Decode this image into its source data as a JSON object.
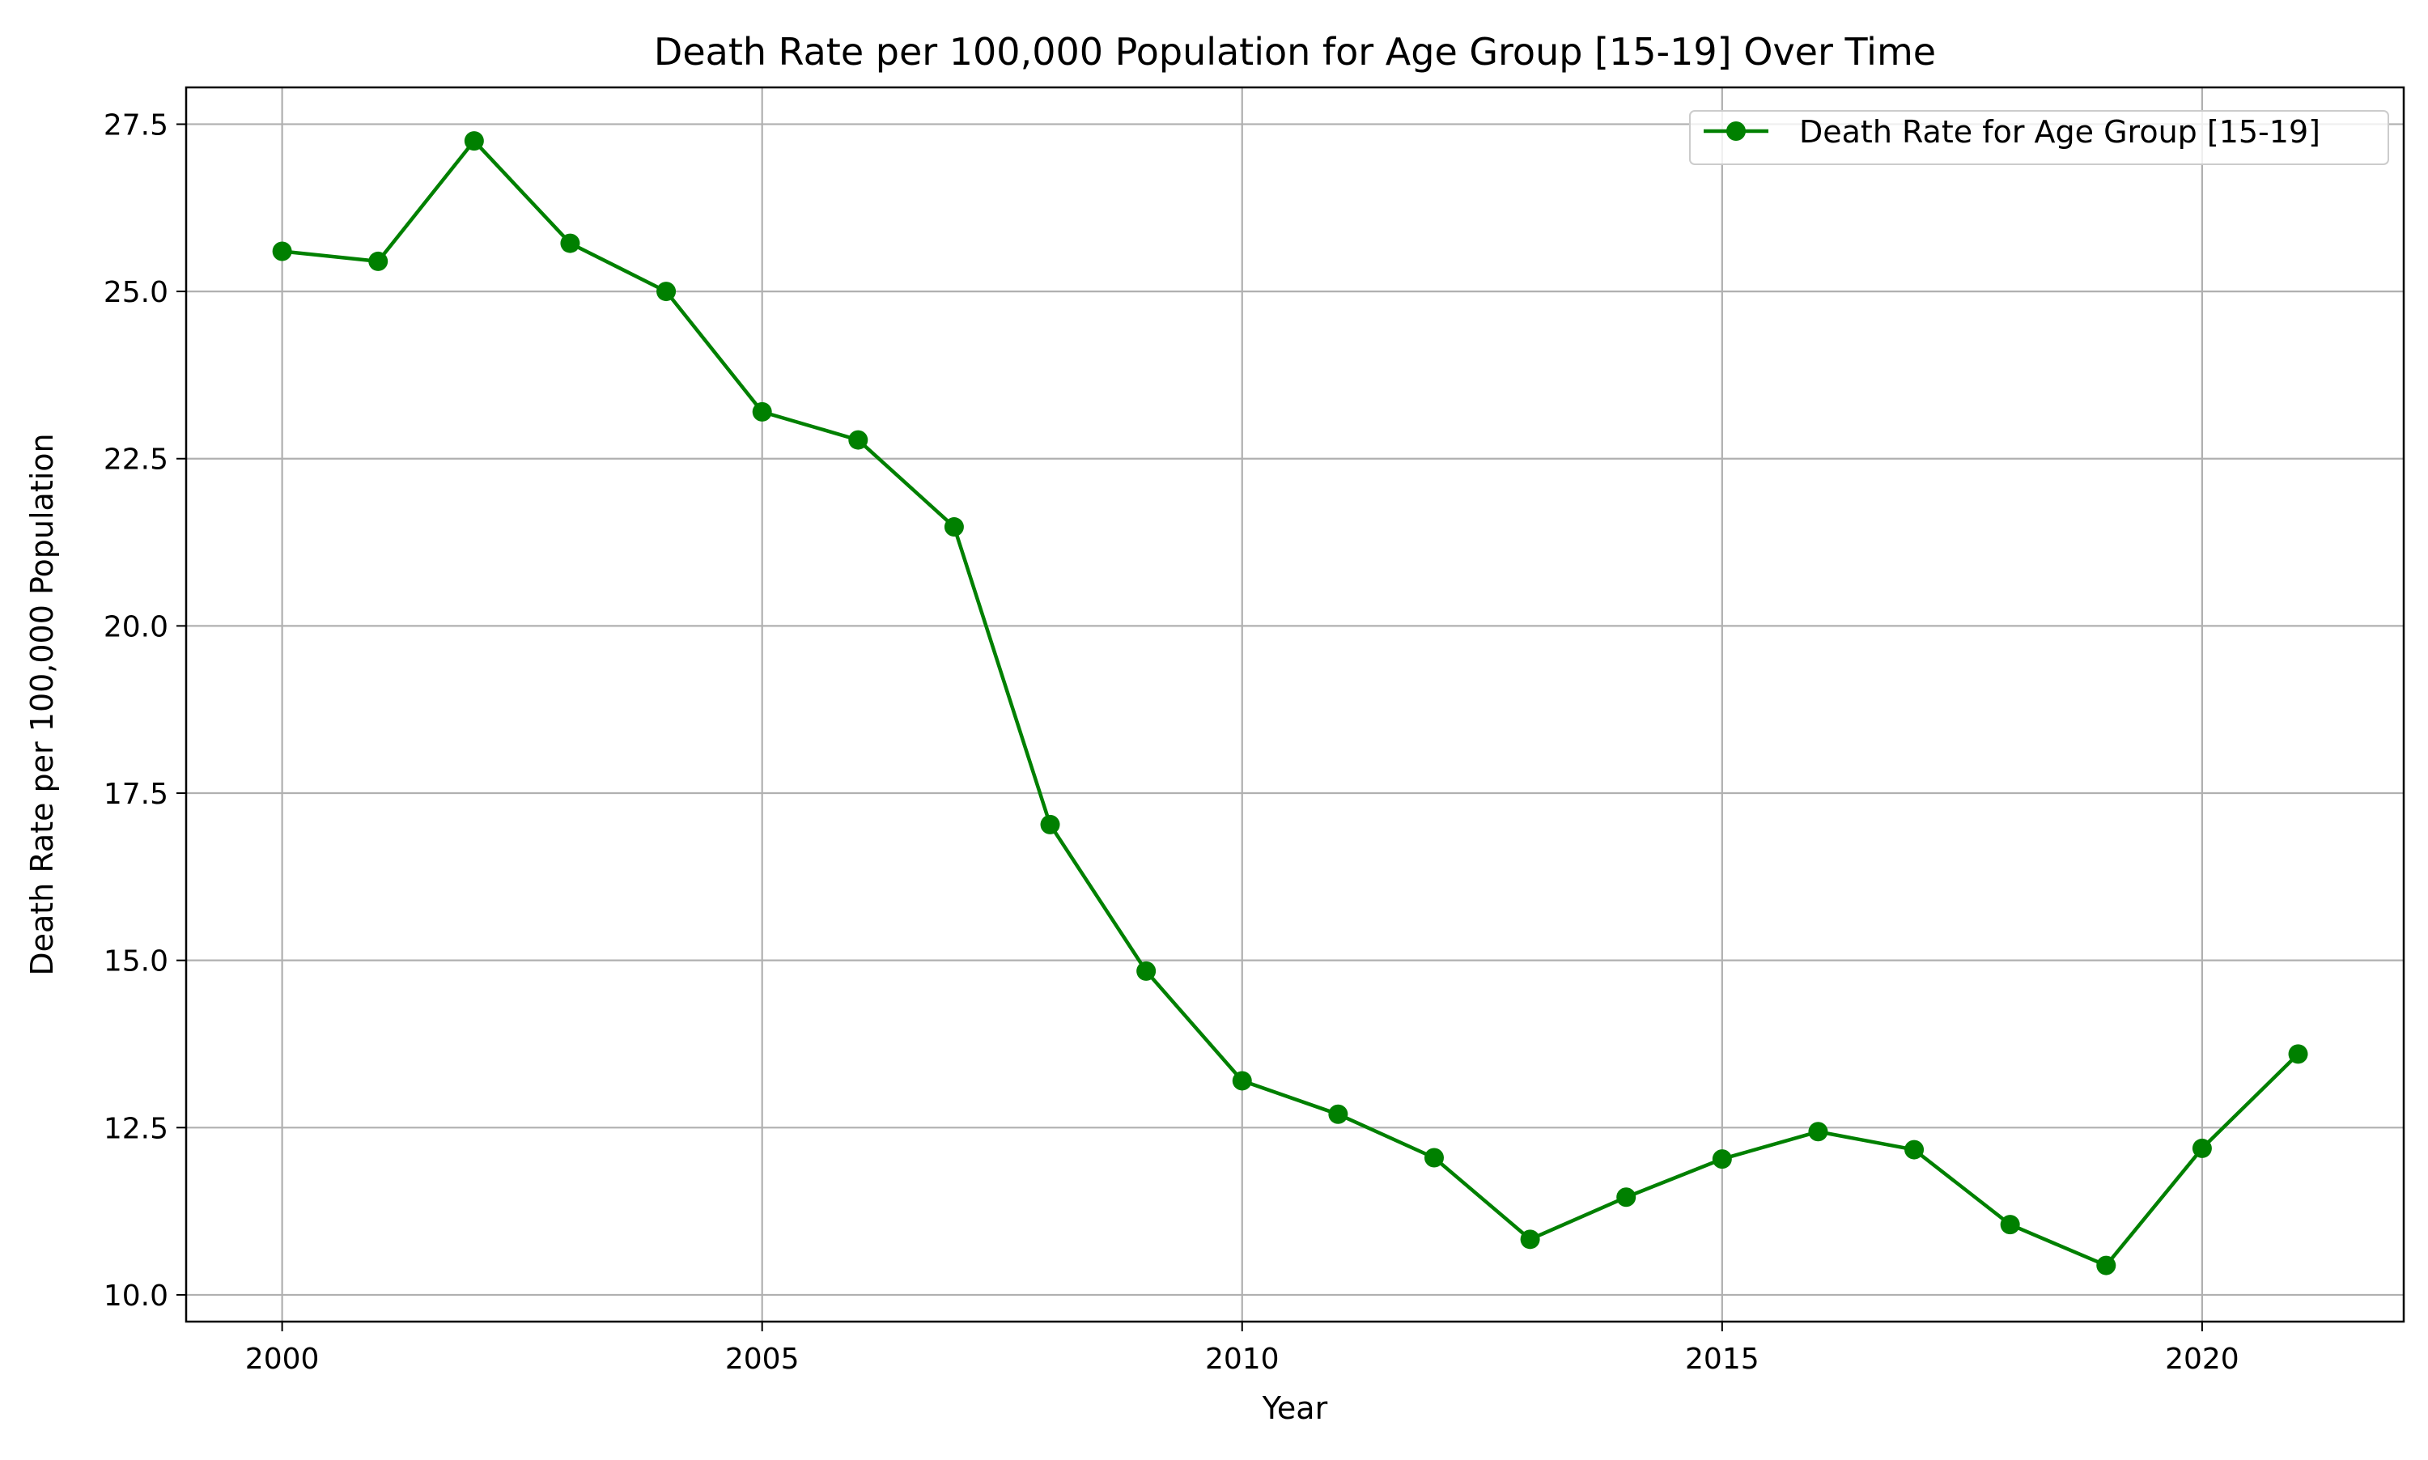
{
  "chart_data": {
    "type": "line",
    "title": "Death Rate per 100,000 Population for Age Group [15-19] Over Time",
    "xlabel": "Year",
    "ylabel": "Death Rate per 100,000 Population",
    "xlim": [
      1999,
      2022.1
    ],
    "ylim": [
      9.6,
      28.05
    ],
    "x_ticks": [
      2000,
      2005,
      2010,
      2015,
      2020
    ],
    "x_tick_labels": [
      "2000",
      "2005",
      "2010",
      "2015",
      "2020"
    ],
    "y_ticks": [
      10.0,
      12.5,
      15.0,
      17.5,
      20.0,
      22.5,
      25.0,
      27.5
    ],
    "y_tick_labels": [
      "10.0",
      "12.5",
      "15.0",
      "17.5",
      "20.0",
      "22.5",
      "25.0",
      "27.5"
    ],
    "grid": true,
    "legend_position": "top-right",
    "color": "#008000",
    "x": [
      2000,
      2001,
      2002,
      2003,
      2004,
      2005,
      2006,
      2007,
      2008,
      2009,
      2010,
      2011,
      2012,
      2013,
      2014,
      2015,
      2016,
      2017,
      2018,
      2019,
      2020,
      2021
    ],
    "series": [
      {
        "name": "Death Rate for Age Group [15-19]",
        "marker": "circle",
        "values": [
          25.6,
          25.45,
          27.25,
          25.72,
          25.0,
          23.2,
          22.78,
          21.48,
          17.03,
          14.84,
          13.2,
          12.7,
          12.05,
          10.83,
          11.46,
          12.03,
          12.44,
          12.17,
          11.05,
          10.44,
          12.19,
          13.6
        ]
      }
    ]
  }
}
